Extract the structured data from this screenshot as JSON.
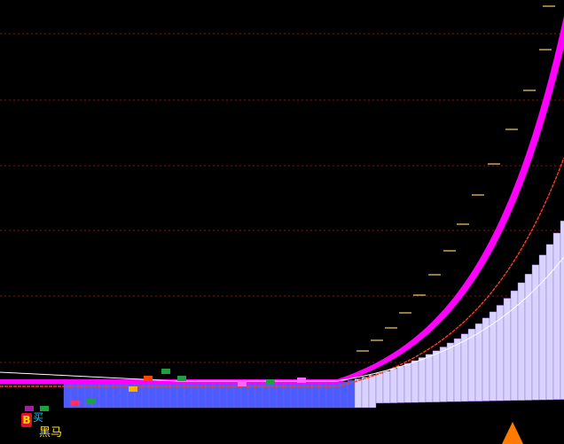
{
  "signal": {
    "buy_marker": "B",
    "text_top": "买",
    "text_horse": "黑马"
  },
  "colors": {
    "background": "#000000",
    "grid": "#8b1010",
    "ribbon": "#ff00ff",
    "ma_line": "#ff3b1a",
    "price_line": "#ffffff",
    "volume_fill": "#d8d4ff",
    "volume_dark": "#4b5cff",
    "step_marks": "#ffcc66",
    "triangle": "#ff7a00"
  },
  "chart_data": {
    "type": "line",
    "title": "",
    "xlabel": "",
    "ylabel": "",
    "grid": true,
    "legend": "none"
  }
}
